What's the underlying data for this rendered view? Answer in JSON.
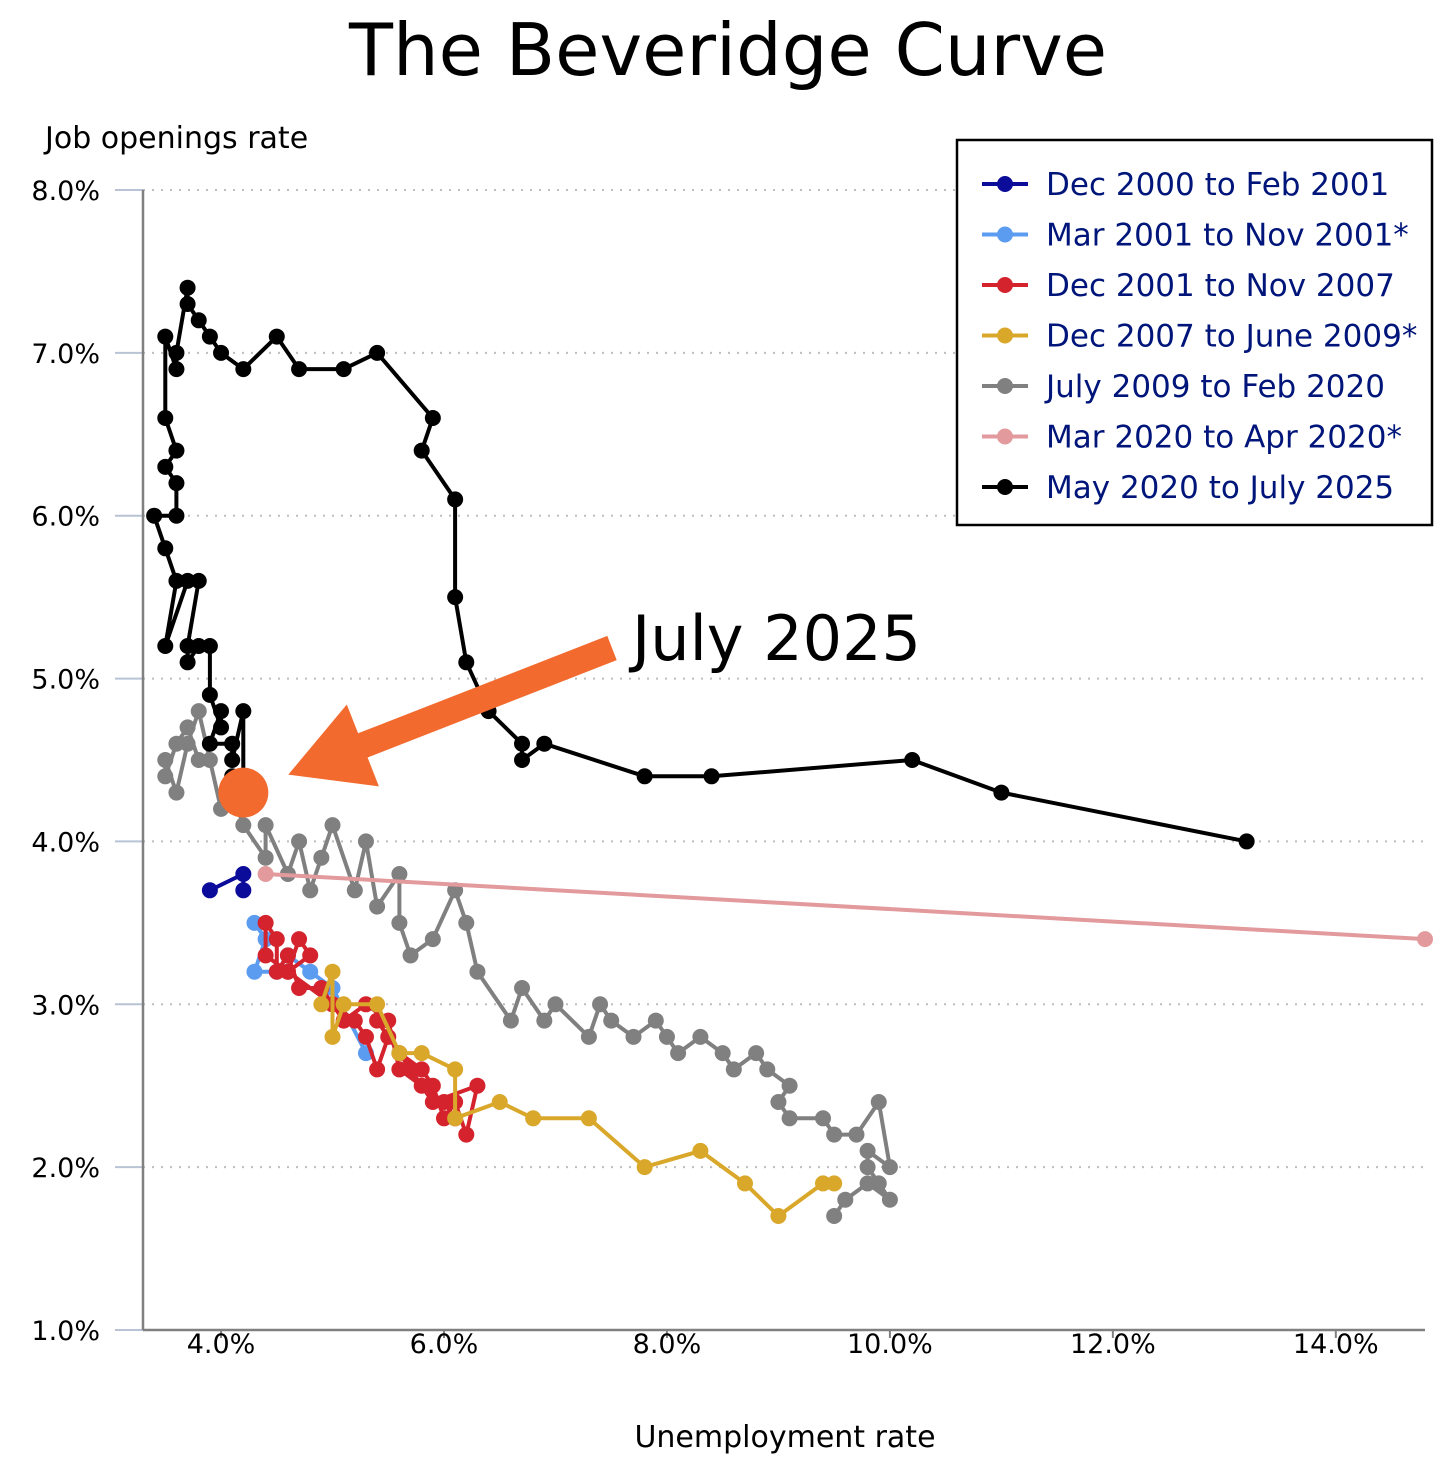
{
  "chart_data": {
    "type": "line",
    "title": "The Beveridge Curve",
    "xlabel": "Unemployment rate",
    "ylabel": "Job openings rate",
    "xlim": [
      3.3,
      14.8
    ],
    "ylim": [
      1.0,
      8.0
    ],
    "xticks": [
      4,
      6,
      8,
      10,
      12,
      14
    ],
    "yticks": [
      1,
      2,
      3,
      4,
      5,
      6,
      7,
      8
    ],
    "xtick_labels": [
      "4.0%",
      "6.0%",
      "8.0%",
      "10.0%",
      "12.0%",
      "14.0%"
    ],
    "ytick_labels": [
      "1.0%",
      "2.0%",
      "3.0%",
      "4.0%",
      "5.0%",
      "6.0%",
      "7.0%",
      "8.0%"
    ],
    "grid": "horizontal dotted",
    "legend_position": "top-right",
    "series": [
      {
        "name": "Dec 2000 to Feb 2001",
        "color": "#0c0c9a",
        "points": [
          [
            3.9,
            3.7
          ],
          [
            4.2,
            3.8
          ],
          [
            4.2,
            3.7
          ]
        ]
      },
      {
        "name": "Mar 2001 to Nov 2001*",
        "color": "#5b9bf0",
        "points": [
          [
            4.3,
            3.5
          ],
          [
            4.4,
            3.4
          ],
          [
            4.3,
            3.2
          ],
          [
            4.5,
            3.2
          ],
          [
            4.6,
            3.3
          ],
          [
            4.8,
            3.2
          ],
          [
            5.0,
            3.1
          ],
          [
            5.3,
            2.7
          ]
        ]
      },
      {
        "name": "Dec 2001 to Nov 2007",
        "color": "#d4232d",
        "points": [
          [
            5.4,
            2.9
          ],
          [
            5.6,
            2.7
          ],
          [
            5.8,
            2.6
          ],
          [
            5.9,
            2.5
          ],
          [
            6.0,
            2.3
          ],
          [
            6.1,
            2.4
          ],
          [
            6.2,
            2.2
          ],
          [
            6.3,
            2.5
          ],
          [
            5.9,
            2.4
          ],
          [
            5.7,
            2.6
          ],
          [
            5.5,
            2.8
          ],
          [
            5.4,
            2.6
          ],
          [
            5.3,
            2.8
          ],
          [
            5.2,
            2.9
          ],
          [
            5.0,
            3.0
          ],
          [
            4.9,
            3.1
          ],
          [
            4.7,
            3.1
          ],
          [
            4.6,
            3.3
          ],
          [
            4.5,
            3.2
          ],
          [
            4.5,
            3.4
          ],
          [
            4.4,
            3.5
          ],
          [
            4.4,
            3.3
          ],
          [
            4.6,
            3.2
          ],
          [
            4.7,
            3.4
          ],
          [
            4.8,
            3.3
          ],
          [
            4.6,
            3.2
          ],
          [
            5.0,
            3.0
          ],
          [
            5.1,
            2.9
          ],
          [
            5.3,
            3.0
          ],
          [
            5.5,
            2.9
          ],
          [
            5.6,
            2.6
          ],
          [
            5.8,
            2.5
          ],
          [
            6.0,
            2.4
          ],
          [
            6.1,
            2.3
          ]
        ]
      },
      {
        "name": "Dec 2007 to June 2009*",
        "color": "#d9a82b",
        "points": [
          [
            4.9,
            3.0
          ],
          [
            5.0,
            3.2
          ],
          [
            5.0,
            2.8
          ],
          [
            5.1,
            3.0
          ],
          [
            5.4,
            3.0
          ],
          [
            5.6,
            2.7
          ],
          [
            5.8,
            2.7
          ],
          [
            6.1,
            2.6
          ],
          [
            6.1,
            2.3
          ],
          [
            6.5,
            2.4
          ],
          [
            6.8,
            2.3
          ],
          [
            7.3,
            2.3
          ],
          [
            7.8,
            2.0
          ],
          [
            8.3,
            2.1
          ],
          [
            8.7,
            1.9
          ],
          [
            9.0,
            1.7
          ],
          [
            9.4,
            1.9
          ],
          [
            9.5,
            1.9
          ]
        ]
      },
      {
        "name": "July 2009 to Feb 2020",
        "color": "#808080",
        "points": [
          [
            9.5,
            1.7
          ],
          [
            9.6,
            1.8
          ],
          [
            9.8,
            1.9
          ],
          [
            10.0,
            1.8
          ],
          [
            9.9,
            1.9
          ],
          [
            9.8,
            2.0
          ],
          [
            9.8,
            2.1
          ],
          [
            10.0,
            2.0
          ],
          [
            9.9,
            2.4
          ],
          [
            9.7,
            2.2
          ],
          [
            9.5,
            2.2
          ],
          [
            9.4,
            2.3
          ],
          [
            9.1,
            2.3
          ],
          [
            9.0,
            2.4
          ],
          [
            9.1,
            2.5
          ],
          [
            8.9,
            2.6
          ],
          [
            8.8,
            2.7
          ],
          [
            8.6,
            2.6
          ],
          [
            8.5,
            2.7
          ],
          [
            8.3,
            2.8
          ],
          [
            8.1,
            2.7
          ],
          [
            8.0,
            2.8
          ],
          [
            7.9,
            2.9
          ],
          [
            7.7,
            2.8
          ],
          [
            7.5,
            2.9
          ],
          [
            7.4,
            3.0
          ],
          [
            7.3,
            2.8
          ],
          [
            7.0,
            3.0
          ],
          [
            6.9,
            2.9
          ],
          [
            6.7,
            3.1
          ],
          [
            6.6,
            2.9
          ],
          [
            6.3,
            3.2
          ],
          [
            6.2,
            3.5
          ],
          [
            6.1,
            3.7
          ],
          [
            5.9,
            3.4
          ],
          [
            5.7,
            3.3
          ],
          [
            5.6,
            3.5
          ],
          [
            5.6,
            3.8
          ],
          [
            5.4,
            3.6
          ],
          [
            5.3,
            4.0
          ],
          [
            5.2,
            3.7
          ],
          [
            5.0,
            4.1
          ],
          [
            4.9,
            3.9
          ],
          [
            4.8,
            3.7
          ],
          [
            4.7,
            4.0
          ],
          [
            4.6,
            3.8
          ],
          [
            4.4,
            4.1
          ],
          [
            4.4,
            3.9
          ],
          [
            4.2,
            4.1
          ],
          [
            4.1,
            4.3
          ],
          [
            4.0,
            4.2
          ],
          [
            3.9,
            4.5
          ],
          [
            3.8,
            4.8
          ],
          [
            3.7,
            4.6
          ],
          [
            3.6,
            4.3
          ],
          [
            3.5,
            4.5
          ],
          [
            3.5,
            4.4
          ],
          [
            3.6,
            4.6
          ],
          [
            3.7,
            4.7
          ],
          [
            3.8,
            4.5
          ]
        ]
      },
      {
        "name": "Mar 2020 to Apr 2020*",
        "color": "#e29a9c",
        "points": [
          [
            4.4,
            3.8
          ],
          [
            14.8,
            3.4
          ]
        ]
      },
      {
        "name": "May 2020 to July 2025",
        "color": "#000000",
        "points": [
          [
            13.2,
            4.0
          ],
          [
            11.0,
            4.3
          ],
          [
            10.2,
            4.5
          ],
          [
            8.4,
            4.4
          ],
          [
            7.8,
            4.4
          ],
          [
            6.9,
            4.6
          ],
          [
            6.7,
            4.5
          ],
          [
            6.7,
            4.6
          ],
          [
            6.4,
            4.8
          ],
          [
            6.2,
            5.1
          ],
          [
            6.1,
            5.5
          ],
          [
            6.1,
            6.1
          ],
          [
            5.8,
            6.4
          ],
          [
            5.9,
            6.6
          ],
          [
            5.4,
            7.0
          ],
          [
            5.1,
            6.9
          ],
          [
            4.7,
            6.9
          ],
          [
            4.5,
            7.1
          ],
          [
            4.2,
            6.9
          ],
          [
            4.0,
            7.0
          ],
          [
            3.9,
            7.1
          ],
          [
            3.8,
            7.2
          ],
          [
            3.7,
            7.3
          ],
          [
            3.7,
            7.4
          ],
          [
            3.6,
            7.0
          ],
          [
            3.6,
            6.9
          ],
          [
            3.5,
            7.1
          ],
          [
            3.5,
            6.6
          ],
          [
            3.6,
            6.4
          ],
          [
            3.5,
            6.3
          ],
          [
            3.6,
            6.2
          ],
          [
            3.6,
            6.0
          ],
          [
            3.4,
            6.0
          ],
          [
            3.5,
            5.8
          ],
          [
            3.6,
            5.6
          ],
          [
            3.5,
            5.2
          ],
          [
            3.7,
            5.6
          ],
          [
            3.8,
            5.6
          ],
          [
            3.7,
            5.2
          ],
          [
            3.7,
            5.1
          ],
          [
            3.8,
            5.2
          ],
          [
            3.9,
            5.2
          ],
          [
            3.9,
            4.9
          ],
          [
            4.0,
            4.7
          ],
          [
            4.0,
            4.8
          ],
          [
            3.9,
            4.6
          ],
          [
            4.1,
            4.6
          ],
          [
            4.1,
            4.5
          ],
          [
            4.2,
            4.8
          ],
          [
            4.2,
            4.4
          ],
          [
            4.1,
            4.4
          ],
          [
            4.2,
            4.2
          ]
        ]
      }
    ],
    "annotation": {
      "text": "July 2025",
      "point": [
        4.2,
        4.3
      ],
      "color": "#f26a2e"
    }
  }
}
